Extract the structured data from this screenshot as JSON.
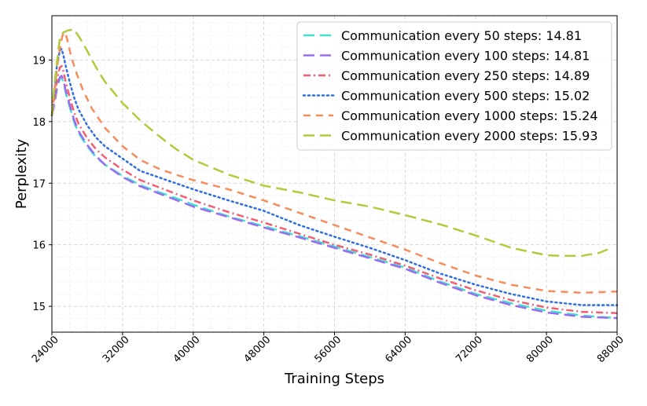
{
  "chart_data": {
    "type": "line",
    "xlabel": "Training Steps",
    "ylabel": "Perplexity",
    "xlim": [
      24000,
      88000
    ],
    "ylim": [
      14.58,
      19.72
    ],
    "x_ticks": [
      24000,
      32000,
      40000,
      48000,
      56000,
      64000,
      72000,
      80000,
      88000
    ],
    "y_ticks": [
      15,
      16,
      17,
      18,
      19
    ],
    "grid": true,
    "legend_position": "top-right",
    "series": [
      {
        "name": "Communication every 50 steps: 14.81",
        "color": "#40e0d0",
        "dash": "long-dash",
        "x": [
          24000,
          24300,
          24600,
          24900,
          25100,
          25300,
          25600,
          26000,
          26500,
          27000,
          28000,
          29000,
          30000,
          32000,
          34000,
          36000,
          38000,
          40000,
          44000,
          48000,
          52000,
          56000,
          60000,
          64000,
          68000,
          72000,
          76000,
          80000,
          84000,
          88000
        ],
        "y": [
          18.1,
          18.3,
          18.55,
          18.7,
          18.72,
          18.65,
          18.45,
          18.25,
          18.0,
          17.82,
          17.6,
          17.42,
          17.3,
          17.12,
          16.97,
          16.86,
          16.76,
          16.65,
          16.46,
          16.3,
          16.14,
          15.97,
          15.8,
          15.63,
          15.4,
          15.2,
          15.05,
          14.93,
          14.85,
          14.81
        ]
      },
      {
        "name": "Communication every 100 steps: 14.81",
        "color": "#9b6cf0",
        "dash": "long-dash",
        "x": [
          24000,
          24300,
          24600,
          24900,
          25100,
          25300,
          25600,
          26000,
          26500,
          27000,
          28000,
          29000,
          30000,
          32000,
          34000,
          36000,
          38000,
          40000,
          44000,
          48000,
          52000,
          56000,
          60000,
          64000,
          68000,
          72000,
          76000,
          80000,
          84000,
          88000
        ],
        "y": [
          18.1,
          18.3,
          18.58,
          18.72,
          18.74,
          18.68,
          18.48,
          18.28,
          18.03,
          17.85,
          17.62,
          17.44,
          17.3,
          17.1,
          16.95,
          16.84,
          16.73,
          16.62,
          16.45,
          16.28,
          16.12,
          15.95,
          15.78,
          15.61,
          15.38,
          15.18,
          15.02,
          14.9,
          14.83,
          14.81
        ]
      },
      {
        "name": "Communication every 250 steps: 14.89",
        "color": "#f06070",
        "dash": "dash-dot",
        "x": [
          24000,
          24300,
          24600,
          24900,
          25100,
          25300,
          25600,
          26000,
          26500,
          27000,
          28000,
          29000,
          30000,
          32000,
          34000,
          36000,
          38000,
          40000,
          44000,
          48000,
          52000,
          56000,
          60000,
          64000,
          68000,
          72000,
          76000,
          80000,
          84000,
          88000
        ],
        "y": [
          18.1,
          18.4,
          18.7,
          18.88,
          18.9,
          18.82,
          18.62,
          18.4,
          18.16,
          17.97,
          17.73,
          17.55,
          17.42,
          17.22,
          17.05,
          16.94,
          16.83,
          16.72,
          16.53,
          16.36,
          16.18,
          16.0,
          15.84,
          15.66,
          15.45,
          15.26,
          15.1,
          14.98,
          14.91,
          14.89
        ]
      },
      {
        "name": "Communication every 500 steps: 15.02",
        "color": "#2f6fe0",
        "dash": "dotted",
        "x": [
          24000,
          24300,
          24600,
          24900,
          25100,
          25300,
          25600,
          26000,
          26500,
          27000,
          28000,
          29000,
          30000,
          32000,
          34000,
          36000,
          38000,
          40000,
          44000,
          48000,
          52000,
          56000,
          60000,
          64000,
          68000,
          72000,
          76000,
          80000,
          84000,
          88000
        ],
        "y": [
          18.1,
          18.5,
          18.95,
          19.15,
          19.18,
          19.08,
          18.88,
          18.65,
          18.4,
          18.2,
          17.94,
          17.74,
          17.6,
          17.4,
          17.2,
          17.1,
          17.0,
          16.9,
          16.72,
          16.55,
          16.32,
          16.13,
          15.95,
          15.75,
          15.53,
          15.35,
          15.2,
          15.08,
          15.02,
          15.02
        ]
      },
      {
        "name": "Communication every 1000 steps: 15.24",
        "color": "#f58c5c",
        "dash": "dashed",
        "x": [
          24000,
          24300,
          24600,
          24900,
          25200,
          25500,
          25800,
          26200,
          26800,
          27500,
          28500,
          30000,
          32000,
          34000,
          36000,
          38000,
          40000,
          44000,
          48000,
          52000,
          56000,
          60000,
          64000,
          68000,
          72000,
          76000,
          80000,
          84000,
          88000
        ],
        "y": [
          18.1,
          18.5,
          18.9,
          19.18,
          19.4,
          19.45,
          19.3,
          19.05,
          18.78,
          18.52,
          18.22,
          17.9,
          17.6,
          17.38,
          17.24,
          17.14,
          17.05,
          16.9,
          16.72,
          16.52,
          16.32,
          16.12,
          15.92,
          15.7,
          15.5,
          15.35,
          15.25,
          15.22,
          15.24
        ]
      },
      {
        "name": "Communication every 2000 steps: 15.93",
        "color": "#b5c93a",
        "dash": "long-dash",
        "x": [
          24000,
          24300,
          24600,
          24900,
          25300,
          25800,
          26500,
          27200,
          28000,
          29000,
          30000,
          32000,
          34000,
          36000,
          38000,
          40000,
          44000,
          48000,
          52000,
          56000,
          60000,
          64000,
          68000,
          72000,
          76000,
          80000,
          82000,
          84000,
          86000,
          87000
        ],
        "y": [
          18.1,
          18.6,
          19.0,
          19.35,
          19.45,
          19.48,
          19.5,
          19.35,
          19.15,
          18.88,
          18.65,
          18.3,
          18.02,
          17.78,
          17.56,
          17.38,
          17.14,
          16.96,
          16.85,
          16.72,
          16.62,
          16.48,
          16.33,
          16.15,
          15.95,
          15.83,
          15.82,
          15.82,
          15.87,
          15.93
        ]
      }
    ]
  }
}
